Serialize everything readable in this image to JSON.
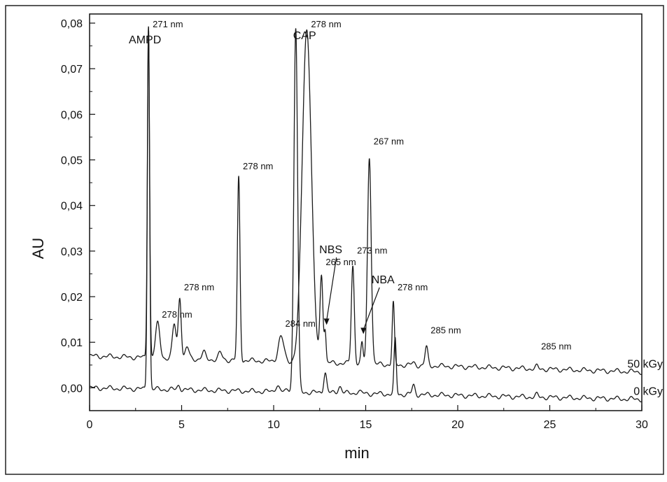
{
  "chart_data": {
    "type": "line",
    "xlabel": "min",
    "ylabel": "AU",
    "xlim": [
      0,
      30
    ],
    "ylim": [
      -0.005,
      0.082
    ],
    "x_ticks": [
      "0",
      "5",
      "10",
      "15",
      "20",
      "25",
      "30"
    ],
    "y_ticks": [
      "0,00",
      "0,01",
      "0,02",
      "0,03",
      "0,04",
      "0,05",
      "0,06",
      "0,07",
      "0,08"
    ],
    "grid": false,
    "legend": "none",
    "series": [
      {
        "name": "50 kGy",
        "baseline": 0.007,
        "baseline_end": 0.0035,
        "peaks": [
          {
            "x": 3.2,
            "y": 0.08,
            "width": 0.06,
            "label": "271 nm"
          },
          {
            "x": 3.7,
            "y": 0.0145,
            "width": 0.12,
            "label": "278 nm"
          },
          {
            "x": 4.6,
            "y": 0.0145,
            "width": 0.1
          },
          {
            "x": 4.9,
            "y": 0.0205,
            "width": 0.08,
            "label": "278 nm"
          },
          {
            "x": 5.3,
            "y": 0.0095,
            "width": 0.1
          },
          {
            "x": 6.2,
            "y": 0.0085,
            "width": 0.1
          },
          {
            "x": 7.1,
            "y": 0.0085,
            "width": 0.1
          },
          {
            "x": 8.1,
            "y": 0.047,
            "width": 0.07,
            "label": "278 nm"
          },
          {
            "x": 10.4,
            "y": 0.0125,
            "width": 0.15,
            "label": "284 nm"
          },
          {
            "x": 11.8,
            "y": 0.08,
            "width": 0.25,
            "label": "278 nm"
          },
          {
            "x": 12.6,
            "y": 0.026,
            "width": 0.08,
            "label": "265 nm"
          },
          {
            "x": 12.8,
            "y": 0.0135,
            "width": 0.05
          },
          {
            "x": 14.3,
            "y": 0.0285,
            "width": 0.08,
            "label": "273 nm"
          },
          {
            "x": 14.8,
            "y": 0.0115,
            "width": 0.06
          },
          {
            "x": 15.2,
            "y": 0.0525,
            "width": 0.1,
            "label": "267 nm"
          },
          {
            "x": 16.5,
            "y": 0.0205,
            "width": 0.06,
            "label": "278 nm"
          },
          {
            "x": 17.6,
            "y": 0.0075,
            "width": 0.1
          },
          {
            "x": 18.3,
            "y": 0.011,
            "width": 0.08,
            "label": "285 nm"
          },
          {
            "x": 24.3,
            "y": 0.0075,
            "width": 0.07,
            "label": "285 nm"
          }
        ]
      },
      {
        "name": "0 kGy",
        "baseline": 0.0,
        "baseline_end": -0.0025,
        "peaks": [
          {
            "x": 3.2,
            "y": 0.08,
            "width": 0.06
          },
          {
            "x": 4.85,
            "y": 0.001,
            "width": 0.08
          },
          {
            "x": 10.2,
            "y": 0.0015,
            "width": 0.1
          },
          {
            "x": 10.8,
            "y": 0.0005,
            "width": 0.1
          },
          {
            "x": 11.2,
            "y": 0.08,
            "width": 0.1
          },
          {
            "x": 12.8,
            "y": 0.0045,
            "width": 0.08
          },
          {
            "x": 13.6,
            "y": 0.0015,
            "width": 0.1
          },
          {
            "x": 14.6,
            "y": 0.0005,
            "width": 0.1
          },
          {
            "x": 16.6,
            "y": 0.012,
            "width": 0.06
          },
          {
            "x": 17.6,
            "y": 0.002,
            "width": 0.08
          },
          {
            "x": 24.3,
            "y": 0.0005,
            "width": 0.07
          }
        ]
      }
    ],
    "compound_labels": [
      {
        "text": "AMPD",
        "x": 3.2
      },
      {
        "text": "CAP",
        "x": 11.3
      },
      {
        "text": "NBS",
        "x": 12.8
      },
      {
        "text": "NBA",
        "x": 14.8
      }
    ],
    "trace_labels": [
      "50 kGy",
      "0 kGy"
    ],
    "colors": {
      "line": "#1a1a1a",
      "background": "#ffffff"
    }
  }
}
